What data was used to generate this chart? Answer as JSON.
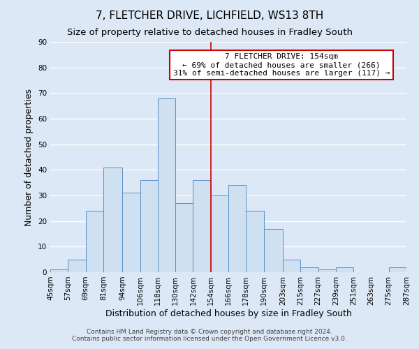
{
  "title": "7, FLETCHER DRIVE, LICHFIELD, WS13 8TH",
  "subtitle": "Size of property relative to detached houses in Fradley South",
  "xlabel": "Distribution of detached houses by size in Fradley South",
  "ylabel": "Number of detached properties",
  "footer_line1": "Contains HM Land Registry data © Crown copyright and database right 2024.",
  "footer_line2": "Contains public sector information licensed under the Open Government Licence v3.0.",
  "bin_edges": [
    45,
    57,
    69,
    81,
    94,
    106,
    118,
    130,
    142,
    154,
    166,
    178,
    190,
    203,
    215,
    227,
    239,
    251,
    263,
    275,
    287
  ],
  "bin_labels": [
    "45sqm",
    "57sqm",
    "69sqm",
    "81sqm",
    "94sqm",
    "106sqm",
    "118sqm",
    "130sqm",
    "142sqm",
    "154sqm",
    "166sqm",
    "178sqm",
    "190sqm",
    "203sqm",
    "215sqm",
    "227sqm",
    "239sqm",
    "251sqm",
    "263sqm",
    "275sqm",
    "287sqm"
  ],
  "counts": [
    1,
    5,
    24,
    41,
    31,
    36,
    68,
    27,
    36,
    30,
    34,
    24,
    17,
    5,
    2,
    1,
    2,
    0,
    0,
    2
  ],
  "bar_color": "#cfe0f0",
  "bar_edge_color": "#5b8fc9",
  "vline_x": 154,
  "vline_color": "#cc0000",
  "annotation_title": "7 FLETCHER DRIVE: 154sqm",
  "annotation_line1": "← 69% of detached houses are smaller (266)",
  "annotation_line2": "31% of semi-detached houses are larger (117) →",
  "annotation_box_color": "#ffffff",
  "annotation_box_edge_color": "#cc0000",
  "ylim": [
    0,
    90
  ],
  "yticks": [
    0,
    10,
    20,
    30,
    40,
    50,
    60,
    70,
    80,
    90
  ],
  "background_color": "#dce8f5",
  "grid_color": "#ffffff",
  "title_fontsize": 11,
  "subtitle_fontsize": 9.5,
  "axis_label_fontsize": 9,
  "tick_fontsize": 7.5,
  "annotation_fontsize": 8,
  "footer_fontsize": 6.5
}
